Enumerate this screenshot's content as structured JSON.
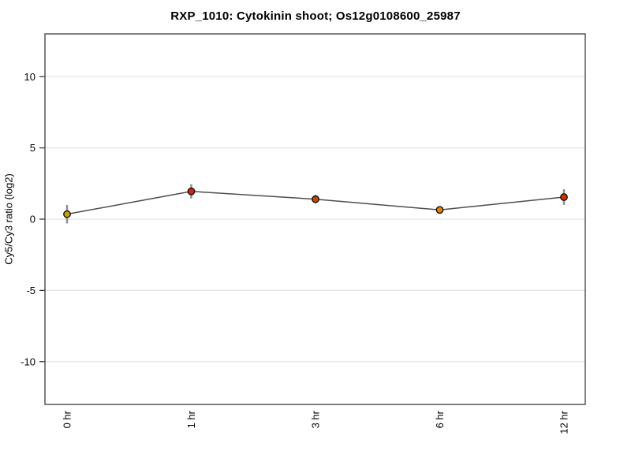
{
  "chart_data": {
    "type": "line",
    "title": "RXP_1010: Cytokinin shoot; Os12g0108600_25987",
    "ylabel": "Cy5/Cy3 ratio (log2)",
    "xlabel": "",
    "categories": [
      "0 hr",
      "1 hr",
      "3 hr",
      "6 hr",
      "12 hr"
    ],
    "series": [
      {
        "name": "Cy5/Cy3 ratio (log2)",
        "values": [
          0.35,
          1.95,
          1.4,
          0.65,
          1.55
        ],
        "errors": [
          0.65,
          0.5,
          0.3,
          0.15,
          0.55
        ],
        "point_colors": [
          "#c6a300",
          "#d62400",
          "#c74500",
          "#e68000",
          "#d63000"
        ]
      }
    ],
    "ylim": [
      -13,
      13
    ],
    "yticks": [
      -10,
      -5,
      0,
      5,
      10
    ],
    "grid": true,
    "legend": "none",
    "colors": {
      "line": "#4d4d4d",
      "error_bar": "#8f8f8f",
      "marker_stroke": "#111111",
      "frame": "#3c3c3c",
      "gridline": "#e4e4e4",
      "tick": "#3c3c3c",
      "text": "#000000",
      "background": "#ffffff"
    }
  }
}
